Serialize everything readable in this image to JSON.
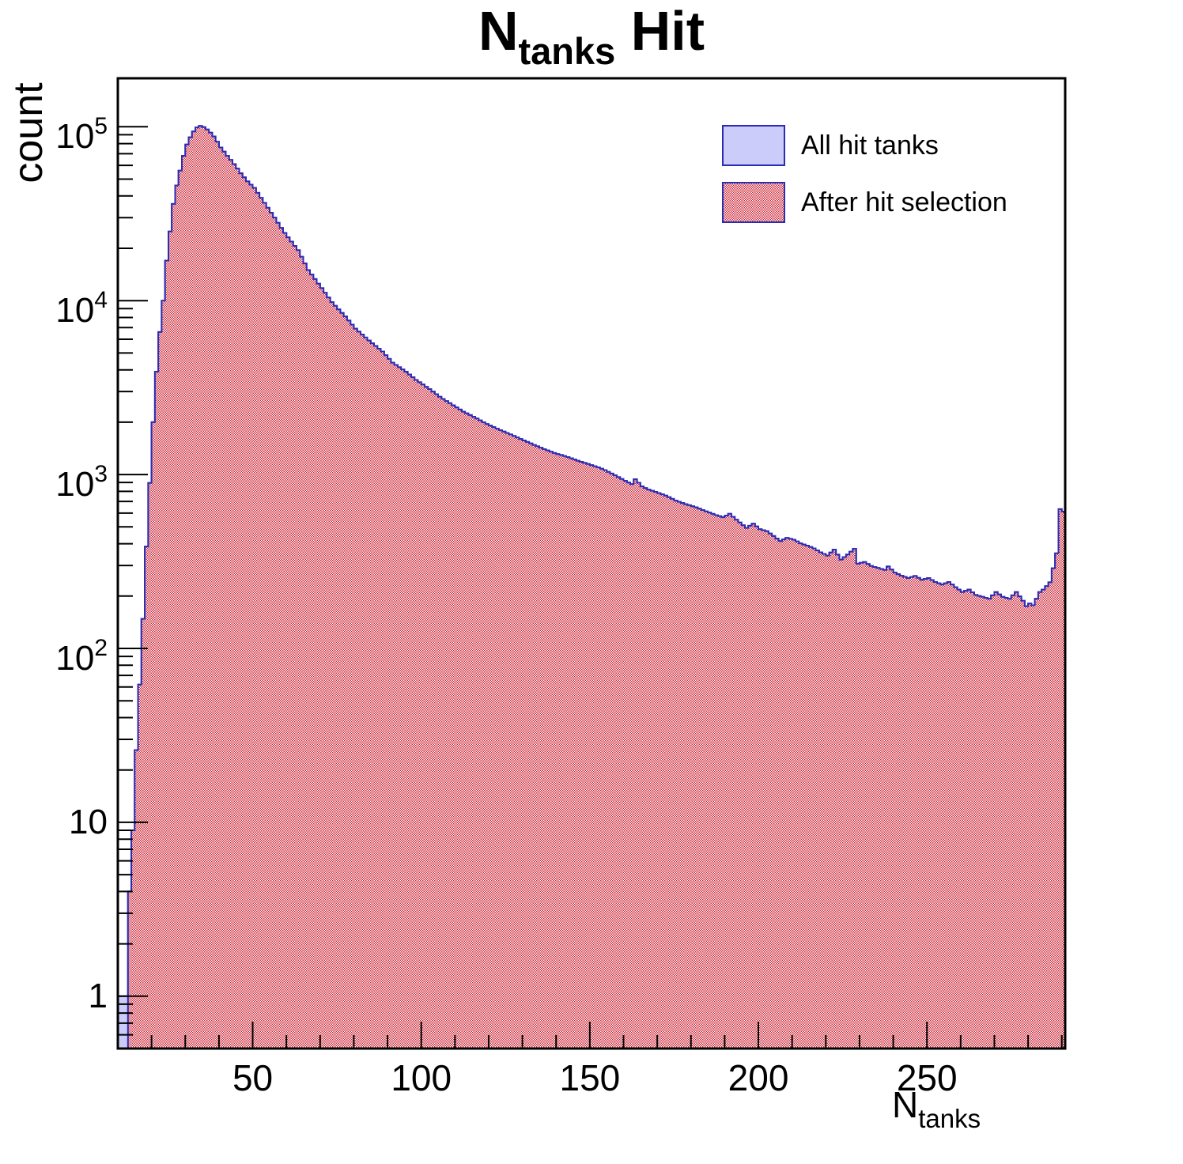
{
  "title": {
    "prefix": "N",
    "subscript": "tanks",
    "suffix": " Hit"
  },
  "y_axis": {
    "title": "count",
    "scale": "log",
    "min": 0.5,
    "max": 190000,
    "tick_labels": [
      {
        "value": 1,
        "text": "1"
      },
      {
        "value": 10,
        "text": "10"
      },
      {
        "value": 100,
        "text": "10",
        "exp": "2"
      },
      {
        "value": 1000,
        "text": "10",
        "exp": "3"
      },
      {
        "value": 10000,
        "text": "10",
        "exp": "4"
      },
      {
        "value": 100000,
        "text": "10",
        "exp": "5"
      }
    ]
  },
  "x_axis": {
    "title_prefix": "N",
    "title_subscript": "tanks",
    "min": 10,
    "max": 291,
    "major_ticks": [
      50,
      100,
      150,
      200,
      250
    ],
    "minor_tick_step": 10
  },
  "legend": {
    "entries": [
      {
        "label": "All hit tanks",
        "swatch": "lavender-solid"
      },
      {
        "label": "After hit selection",
        "swatch": "red-checker"
      }
    ]
  },
  "colors": {
    "histogram_outline": "#2b2bb4",
    "all_fill": "#ccccfa",
    "selection_red": "#cc2233",
    "axis": "#000000",
    "background": "#ffffff"
  },
  "chart_data": {
    "type": "histogram",
    "title": "N_tanks Hit",
    "xlabel": "N_tanks",
    "ylabel": "count",
    "yscale": "log",
    "xlim": [
      10,
      291
    ],
    "ylim": [
      0.5,
      190000
    ],
    "bin_width": 1,
    "peak": {
      "x": 34,
      "count": 101000
    },
    "sampling_note": "bins are sampled envelope points [N_tanks, count]; intermediate 1-wide bins follow log-linear interpolation",
    "series": [
      {
        "name": "All hit tanks",
        "style": "solid",
        "bins": [
          [
            10,
            1
          ],
          [
            11,
            1
          ],
          [
            12,
            1
          ],
          [
            13,
            4
          ],
          [
            14,
            9
          ],
          [
            15,
            26
          ],
          [
            16,
            62
          ],
          [
            17,
            148
          ],
          [
            18,
            385
          ],
          [
            19,
            895
          ],
          [
            20,
            2000
          ],
          [
            21,
            3900
          ],
          [
            22,
            6600
          ],
          [
            23,
            10000
          ],
          [
            24,
            17000
          ],
          [
            25,
            25000
          ],
          [
            26,
            36000
          ],
          [
            27,
            46000
          ],
          [
            28,
            56000
          ],
          [
            29,
            68000
          ],
          [
            30,
            79000
          ],
          [
            31,
            87000
          ],
          [
            32,
            94000
          ],
          [
            33,
            99000
          ],
          [
            34,
            101000
          ],
          [
            35,
            99500
          ],
          [
            36,
            96500
          ],
          [
            37,
            92500
          ],
          [
            38,
            88000
          ],
          [
            39,
            82000
          ],
          [
            40,
            76000
          ],
          [
            42,
            68000
          ],
          [
            44,
            61000
          ],
          [
            46,
            54000
          ],
          [
            48,
            48500
          ],
          [
            50,
            44500
          ],
          [
            52,
            39000
          ],
          [
            56,
            30000
          ],
          [
            59,
            24500
          ],
          [
            63,
            19500
          ],
          [
            66,
            15000
          ],
          [
            70,
            11800
          ],
          [
            73,
            9800
          ],
          [
            77,
            8100
          ],
          [
            80,
            6900
          ],
          [
            84,
            5900
          ],
          [
            88,
            5100
          ],
          [
            91,
            4400
          ],
          [
            95,
            3900
          ],
          [
            98,
            3500
          ],
          [
            102,
            3100
          ],
          [
            105,
            2800
          ],
          [
            109,
            2500
          ],
          [
            112,
            2300
          ],
          [
            116,
            2100
          ],
          [
            119,
            1950
          ],
          [
            123,
            1800
          ],
          [
            126,
            1700
          ],
          [
            130,
            1570
          ],
          [
            133,
            1480
          ],
          [
            136,
            1400
          ],
          [
            139,
            1330
          ],
          [
            143,
            1260
          ],
          [
            146,
            1200
          ],
          [
            149,
            1150
          ],
          [
            152,
            1100
          ],
          [
            154,
            1060
          ],
          [
            157,
            990
          ],
          [
            160,
            920
          ],
          [
            162,
            880
          ],
          [
            163,
            940
          ],
          [
            165,
            855
          ],
          [
            167,
            818
          ],
          [
            169,
            795
          ],
          [
            172,
            757
          ],
          [
            175,
            708
          ],
          [
            178,
            675
          ],
          [
            181,
            648
          ],
          [
            184,
            614
          ],
          [
            187,
            584
          ],
          [
            189,
            568
          ],
          [
            191,
            594
          ],
          [
            193,
            550
          ],
          [
            196,
            493
          ],
          [
            198,
            522
          ],
          [
            200,
            485
          ],
          [
            202,
            472
          ],
          [
            204,
            443
          ],
          [
            206,
            414
          ],
          [
            208,
            432
          ],
          [
            210,
            422
          ],
          [
            212,
            402
          ],
          [
            214,
            390
          ],
          [
            216,
            376
          ],
          [
            218,
            357
          ],
          [
            220,
            342
          ],
          [
            222,
            370
          ],
          [
            224,
            324
          ],
          [
            226,
            347
          ],
          [
            228,
            374
          ],
          [
            229,
            307
          ],
          [
            231,
            314
          ],
          [
            233,
            298
          ],
          [
            235,
            290
          ],
          [
            237,
            283
          ],
          [
            238,
            296
          ],
          [
            240,
            273
          ],
          [
            242,
            262
          ],
          [
            244,
            254
          ],
          [
            246,
            261
          ],
          [
            248,
            248
          ],
          [
            250,
            254
          ],
          [
            252,
            241
          ],
          [
            254,
            233
          ],
          [
            256,
            241
          ],
          [
            258,
            225
          ],
          [
            260,
            211
          ],
          [
            262,
            218
          ],
          [
            264,
            203
          ],
          [
            266,
            198
          ],
          [
            268,
            193
          ],
          [
            270,
            211
          ],
          [
            272,
            198
          ],
          [
            274,
            193
          ],
          [
            276,
            211
          ],
          [
            278,
            188
          ],
          [
            279,
            175
          ],
          [
            280,
            181
          ],
          [
            281,
            177
          ],
          [
            282,
            193
          ],
          [
            283,
            211
          ],
          [
            284,
            218
          ],
          [
            285,
            228
          ],
          [
            286,
            240
          ],
          [
            287,
            289
          ],
          [
            288,
            352
          ],
          [
            289,
            632
          ],
          [
            290,
            612
          ]
        ]
      },
      {
        "name": "After hit selection",
        "style": "checker",
        "bins_same_as_series": 0,
        "except": [
          [
            10,
            0.5
          ],
          [
            11,
            0.5
          ],
          [
            12,
            0.5
          ]
        ]
      }
    ]
  }
}
